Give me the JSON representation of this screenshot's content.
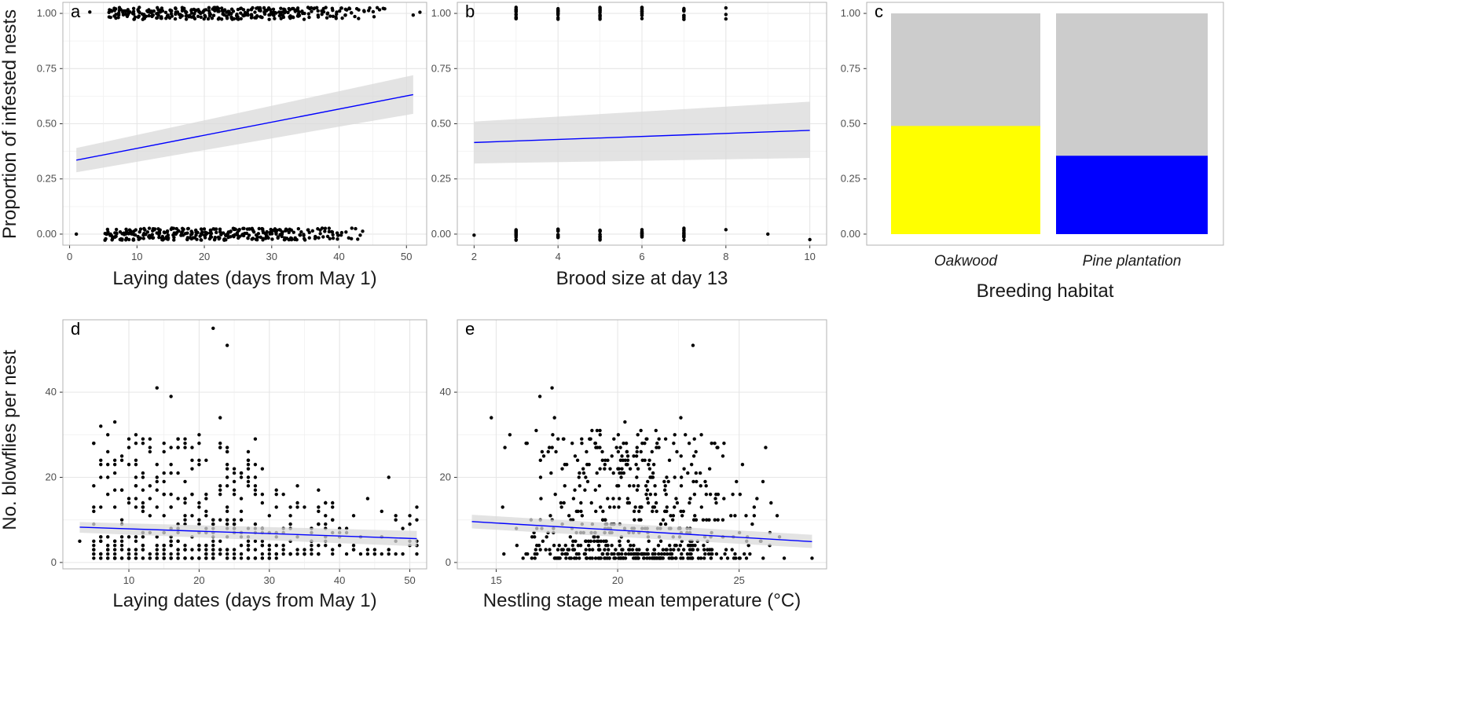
{
  "y_label_top": "Proportion of infested nests",
  "y_label_bottom": "No. blowflies per nest",
  "chart_data": [
    {
      "panel": "a",
      "type": "scatter",
      "xlabel": "Laying dates (days from May 1)",
      "xlim": [
        -1,
        53
      ],
      "ylim": [
        -0.05,
        1.05
      ],
      "xticks": [
        0,
        10,
        20,
        30,
        40,
        50
      ],
      "yticks": [
        0,
        0.25,
        0.5,
        0.75,
        1
      ],
      "ytick_labels": [
        "0.00",
        "0.25",
        "0.50",
        "0.75",
        "1.00"
      ],
      "grid": true,
      "points_note": "binary outcomes (0 or 1) jittered vertically",
      "points_infested_x_range": [
        3,
        51
      ],
      "points_uninfested_x_range": [
        1,
        44
      ],
      "fit": {
        "x": [
          1,
          51
        ],
        "y": [
          0.335,
          0.632
        ],
        "ci_lower": [
          0.28,
          0.545
        ],
        "ci_upper": [
          0.39,
          0.72
        ]
      }
    },
    {
      "panel": "b",
      "type": "scatter",
      "xlabel": "Brood size at day 13",
      "xlim": [
        1.6,
        10.4
      ],
      "ylim": [
        -0.05,
        1.05
      ],
      "xticks": [
        2,
        4,
        6,
        8,
        10
      ],
      "yticks": [
        0,
        0.25,
        0.5,
        0.75,
        1
      ],
      "ytick_labels": [
        "0.00",
        "0.25",
        "0.50",
        "0.75",
        "1.00"
      ],
      "grid": true,
      "fit": {
        "x": [
          2,
          10
        ],
        "y": [
          0.415,
          0.47
        ],
        "ci_lower": [
          0.32,
          0.345
        ],
        "ci_upper": [
          0.51,
          0.6
        ]
      }
    },
    {
      "panel": "c",
      "type": "bar",
      "xlabel": "Breeding habitat",
      "categories": [
        "Oakwood",
        "Pine plantation"
      ],
      "infested": [
        0.49,
        0.355
      ],
      "colors": [
        "#ffff00",
        "#0000ff"
      ],
      "background_color": "#cccccc",
      "ylim": [
        -0.05,
        1.05
      ],
      "yticks": [
        0,
        0.25,
        0.5,
        0.75,
        1
      ],
      "ytick_labels": [
        "0.00",
        "0.25",
        "0.50",
        "0.75",
        "1.00"
      ]
    },
    {
      "panel": "d",
      "type": "scatter",
      "xlabel": "Laying dates (days from May 1)",
      "xlim": [
        0.6,
        52.4
      ],
      "ylim": [
        -1.5,
        57
      ],
      "xticks": [
        10,
        20,
        30,
        40,
        50
      ],
      "yticks": [
        0,
        20,
        40
      ],
      "grid": true,
      "fit": {
        "x": [
          3,
          51
        ],
        "y": [
          8.3,
          5.6
        ],
        "ci_lower": [
          7.0,
          3.8
        ],
        "ci_upper": [
          9.5,
          7.4
        ]
      }
    },
    {
      "panel": "e",
      "type": "scatter",
      "xlabel": "Nestling stage mean temperature (°C)",
      "xlim": [
        13.4,
        28.6
      ],
      "ylim": [
        -1.5,
        57
      ],
      "xticks": [
        15,
        20,
        25
      ],
      "yticks": [
        0,
        20,
        40
      ],
      "grid": true,
      "fit": {
        "x": [
          14,
          28
        ],
        "y": [
          9.6,
          4.9
        ],
        "ci_lower": [
          8.0,
          3.4
        ],
        "ci_upper": [
          11.2,
          6.5
        ]
      }
    }
  ],
  "colors": {
    "fit_line": "#0000ff",
    "ci_band": "#d9d9d9",
    "panel_bg": "#ffffff",
    "grid": "#e6e6e6",
    "panel_border": "#b3b3b3",
    "points": "#000000"
  }
}
